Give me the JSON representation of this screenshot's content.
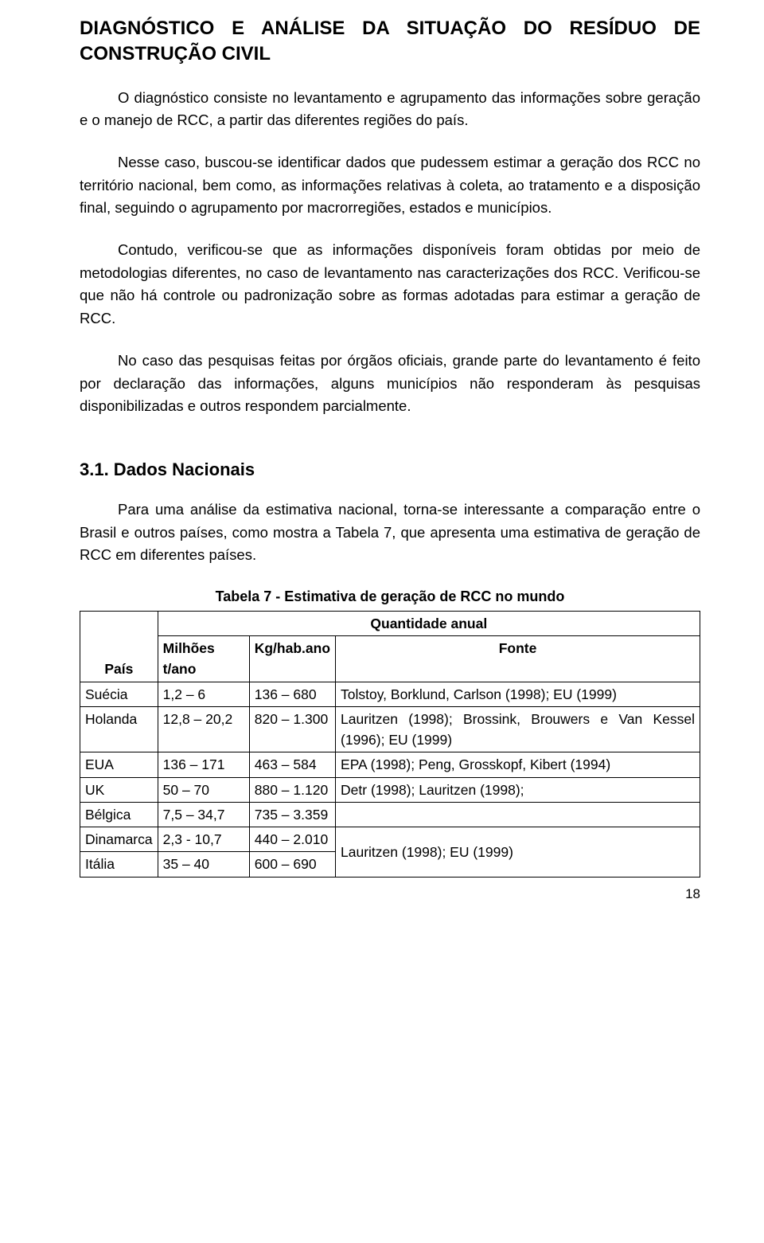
{
  "title": "DIAGNÓSTICO E ANÁLISE DA SITUAÇÃO DO RESÍDUO DE CONSTRUÇÃO CIVIL",
  "paragraphs": {
    "p1": "O diagnóstico consiste no levantamento e agrupamento das informações sobre geração e o manejo de RCC, a partir das diferentes regiões do país.",
    "p2": "Nesse caso, buscou-se identificar dados que pudessem estimar a geração dos RCC no território nacional, bem como, as informações relativas à coleta, ao tratamento e a disposição final, seguindo o agrupamento por macrorregiões, estados e municípios.",
    "p3": "Contudo, verificou-se que as informações disponíveis foram obtidas por meio de metodologias diferentes, no caso de levantamento nas caracterizações dos RCC. Verificou-se que não há controle ou padronização sobre as formas adotadas para estimar a geração de RCC.",
    "p4": "No caso das pesquisas feitas por órgãos oficiais, grande parte do levantamento é feito por declaração das informações, alguns municípios não responderam às pesquisas disponibilizadas e outros respondem parcialmente."
  },
  "section": {
    "heading": "3.1. Dados Nacionais",
    "intro": "Para uma análise da estimativa nacional, torna-se interessante a comparação entre o Brasil e outros países, como mostra a Tabela 7, que apresenta uma estimativa de geração de RCC em diferentes países."
  },
  "table": {
    "caption": "Tabela 7 - Estimativa de geração de RCC no mundo",
    "header_top": "Quantidade anual",
    "header_pais": "País",
    "header_milhoes": "Milhões t/ano",
    "header_kg": "Kg/hab.ano",
    "header_fonte": "Fonte",
    "rows": [
      {
        "pais": "Suécia",
        "milhoes": "1,2 – 6",
        "kg": "136 – 680",
        "fonte": "Tolstoy, Borklund, Carlson (1998); EU (1999)"
      },
      {
        "pais": "Holanda",
        "milhoes": "12,8 – 20,2",
        "kg": "820 – 1.300",
        "fonte": "Lauritzen (1998); Brossink, Brouwers e Van Kessel (1996); EU (1999)"
      },
      {
        "pais": "EUA",
        "milhoes": "136 – 171",
        "kg": "463 – 584",
        "fonte": "EPA (1998); Peng, Grosskopf, Kibert (1994)"
      },
      {
        "pais": "UK",
        "milhoes": "50 – 70",
        "kg": "880 – 1.120",
        "fonte": "Detr (1998); Lauritzen (1998);"
      },
      {
        "pais": "Bélgica",
        "milhoes": "7,5 – 34,7",
        "kg": "735 – 3.359",
        "fonte": ""
      },
      {
        "pais": "Dinamarca",
        "milhoes": "2,3 - 10,7",
        "kg": "440 – 2.010",
        "fonte": "Lauritzen (1998); EU (1999)"
      },
      {
        "pais": "Itália",
        "milhoes": "35 – 40",
        "kg": "600 – 690",
        "fonte": ""
      }
    ]
  },
  "page_number": "18"
}
